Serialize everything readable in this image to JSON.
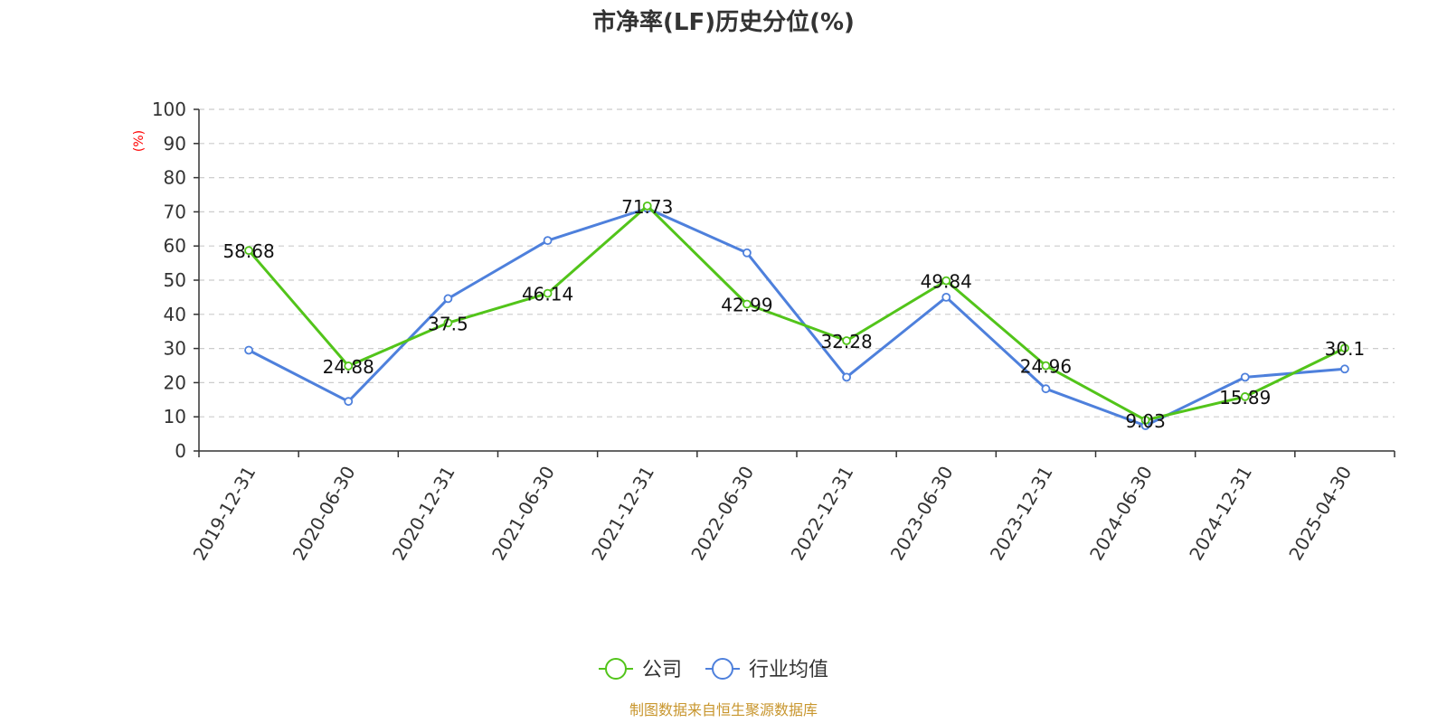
{
  "chart_data": {
    "type": "line",
    "title": "市净率(LF)历史分位(%)",
    "ylabel": "(%)",
    "ylim": [
      0,
      100
    ],
    "yticks": [
      0,
      10,
      20,
      30,
      40,
      50,
      60,
      70,
      80,
      90,
      100
    ],
    "grid": true,
    "legend_position": "bottom",
    "categories": [
      "2019-12-31",
      "2020-06-30",
      "2020-12-31",
      "2021-06-30",
      "2021-12-31",
      "2022-06-30",
      "2022-12-31",
      "2023-06-30",
      "2023-12-31",
      "2024-06-30",
      "2024-12-31",
      "2025-04-30"
    ],
    "series": [
      {
        "name": "公司",
        "color": "#52c41a",
        "values": [
          58.68,
          24.88,
          37.5,
          46.14,
          71.73,
          42.99,
          32.28,
          49.84,
          24.96,
          9.03,
          15.89,
          30.1
        ],
        "data_labels": [
          "58.68",
          "24.88",
          "37.5",
          "46.14",
          "71.73",
          "42.99",
          "32.28",
          "49.84",
          "24.96",
          "9.03",
          "15.89",
          "30.1"
        ]
      },
      {
        "name": "行业均值",
        "color": "#4e80dc",
        "values": [
          29.5,
          14.5,
          44.6,
          61.6,
          71.0,
          58.0,
          21.6,
          45.0,
          18.2,
          7.4,
          21.6,
          24.0
        ]
      }
    ],
    "source": "制图数据来自恒生聚源数据库"
  }
}
